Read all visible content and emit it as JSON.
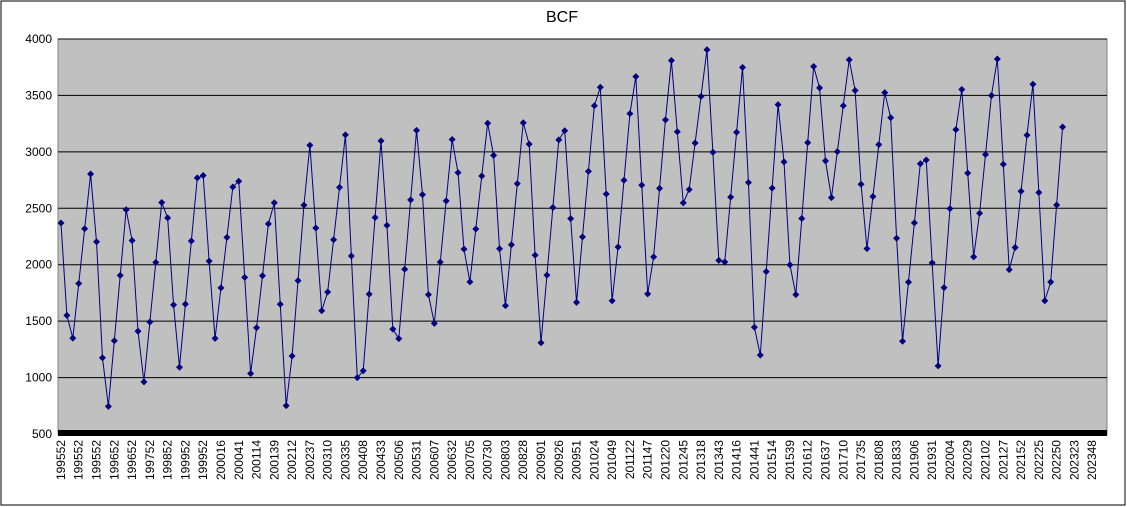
{
  "chart_data": {
    "type": "line",
    "title": "BCF",
    "color": "#000080",
    "ylim": [
      500,
      4000
    ],
    "yticks": [
      500,
      1000,
      1500,
      2000,
      2500,
      3000,
      3500,
      4000
    ],
    "grid": true,
    "categories": [
      "199552",
      null,
      null,
      "199552",
      null,
      null,
      "199552",
      null,
      null,
      "199652",
      null,
      null,
      "199652",
      null,
      null,
      "199752",
      null,
      null,
      "199852",
      null,
      null,
      "199952",
      null,
      null,
      "199952",
      null,
      null,
      "200016",
      null,
      null,
      "200041",
      null,
      null,
      "200114",
      null,
      null,
      "200139",
      null,
      null,
      "200212",
      null,
      null,
      "200237",
      null,
      null,
      "200310",
      null,
      null,
      "200335",
      null,
      null,
      "200408",
      null,
      null,
      "200433",
      null,
      null,
      "200506",
      null,
      null,
      "200531",
      null,
      null,
      "200607",
      null,
      null,
      "200632",
      null,
      null,
      "200705",
      null,
      null,
      "200730",
      null,
      null,
      "200803",
      null,
      null,
      "200828",
      null,
      null,
      "200901",
      null,
      null,
      "200926",
      null,
      null,
      "200951",
      null,
      null,
      "201024",
      null,
      null,
      "201049",
      null,
      null,
      "201122",
      null,
      null,
      "201147",
      null,
      null,
      "201220",
      null,
      null,
      "201245",
      null,
      null,
      "201318",
      null,
      null,
      "201343",
      null,
      null,
      "201416",
      null,
      null,
      "201441",
      null,
      null,
      "201514",
      null,
      null,
      "201539",
      null,
      null,
      "201612",
      null,
      null,
      "201637",
      null,
      null,
      "201710",
      null,
      null,
      "201735",
      null,
      null,
      "201808",
      null,
      null,
      "201833",
      null,
      null,
      "201906",
      null,
      null,
      "201931",
      null,
      null,
      "202004",
      null,
      null,
      "202029",
      null,
      null,
      "202102",
      null,
      null,
      "202127",
      null,
      null,
      "202152",
      null,
      null,
      "202225",
      null,
      null,
      "202250",
      null,
      null,
      "202323",
      null,
      null,
      "202348",
      null,
      null
    ],
    "values": [
      2370,
      1551,
      1350,
      1834,
      2319,
      2804,
      2203,
      1176,
      745,
      1326,
      1906,
      2487,
      2215,
      1410,
      962,
      1492,
      2021,
      2551,
      2415,
      1644,
      1092,
      1651,
      2210,
      2769,
      2790,
      2032,
      1347,
      1795,
      2242,
      2689,
      2740,
      1888,
      1036,
      1441,
      1902,
      2362,
      2549,
      1650,
      751,
      1191,
      1859,
      2528,
      3058,
      2325,
      1592,
      1758,
      2221,
      2685,
      3150,
      2077,
      999,
      1060,
      1739,
      2418,
      3097,
      2349,
      1429,
      1345,
      1960,
      2575,
      3190,
      2621,
      1735,
      1480,
      2023,
      2566,
      3109,
      2816,
      2138,
      1848,
      2317,
      2786,
      3254,
      2969,
      2142,
      1637,
      2177,
      2718,
      3258,
      3069,
      2085,
      1309,
      1908,
      2507,
      3106,
      3187,
      2408,
      1666,
      2247,
      2827,
      3408,
      3572,
      2627,
      1681,
      2157,
      2748,
      3339,
      3667,
      2705,
      1742,
      2069,
      2676,
      3283,
      3809,
      3178,
      2548,
      2666,
      3079,
      3492,
      3905,
      2997,
      2039,
      2024,
      2599,
      3174,
      3749,
      2728,
      1446,
      1199,
      1939,
      2679,
      3419,
      2911,
      1999,
      1735,
      2409,
      3082,
      3756,
      3567,
      2920,
      2594,
      3002,
      3409,
      3816,
      3544,
      2713,
      2143,
      2604,
      3064,
      3525,
      3303,
      2234,
      1322,
      1846,
      2371,
      2895,
      2928,
      2016,
      1104,
      1797,
      2497,
      3197,
      3553,
      2811,
      2070,
      2456,
      2977,
      3499,
      3823,
      2890,
      1957,
      2153,
      2651,
      3148,
      3599,
      2640,
      1681,
      1847,
      2529,
      3220,
      null,
      null,
      null,
      null,
      null,
      null,
      null
    ]
  }
}
